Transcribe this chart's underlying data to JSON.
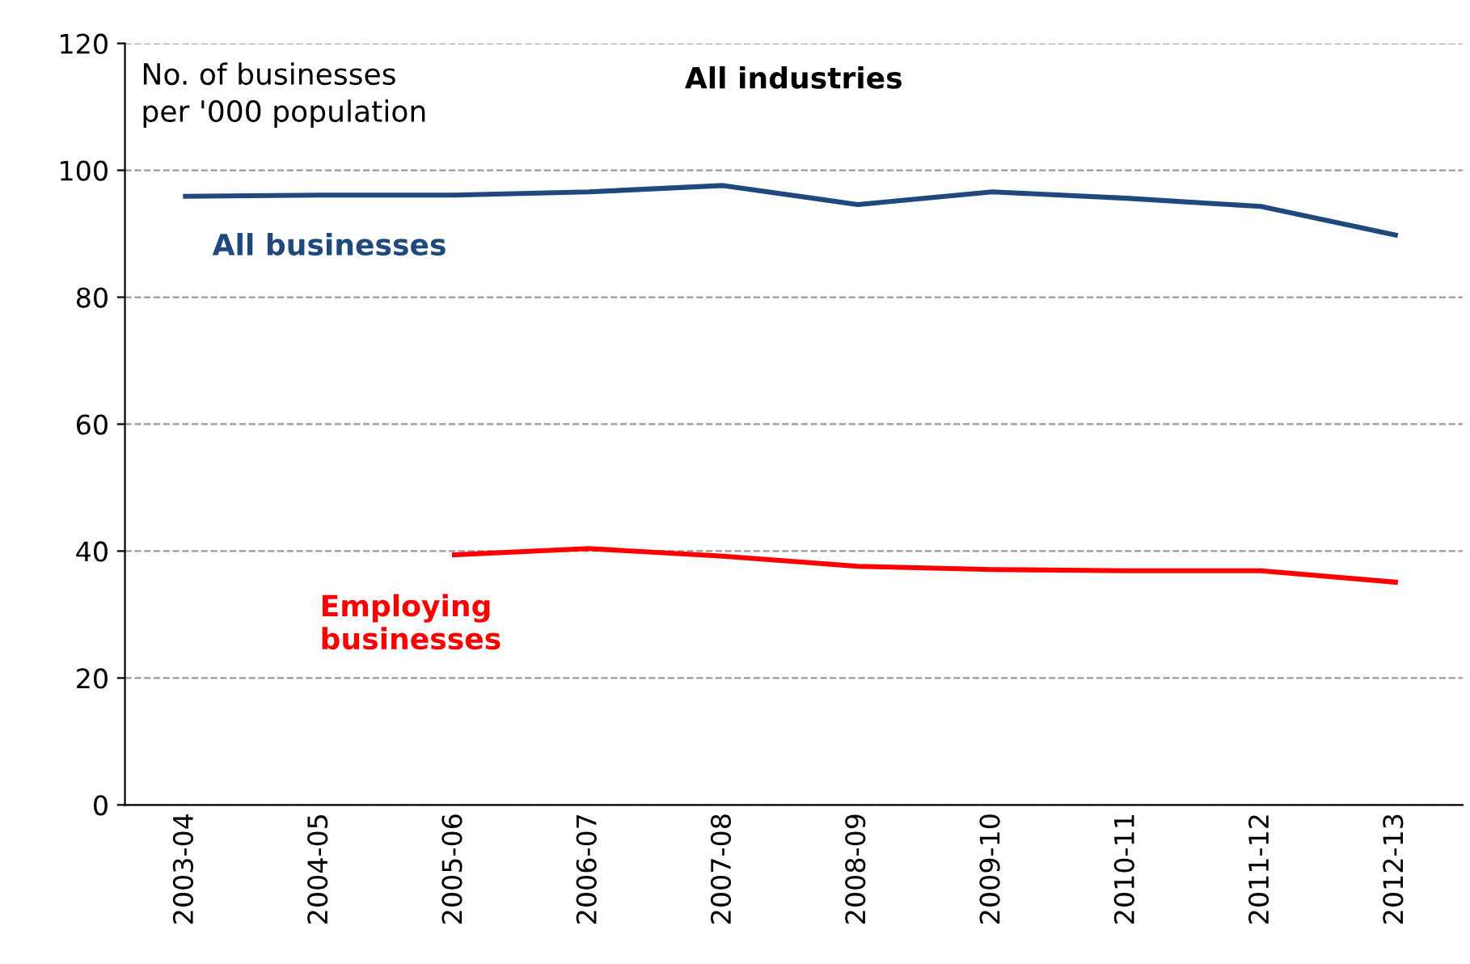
{
  "chart_data": {
    "type": "line",
    "title": "All industries",
    "ylabel": "No. of businesses\nper '000 population",
    "categories": [
      "2003-04",
      "2004-05",
      "2005-06",
      "2006-07",
      "2007-08",
      "2008-09",
      "2009-10",
      "2010-11",
      "2011-12",
      "2012-13"
    ],
    "series": [
      {
        "name": "All businesses",
        "color": "#1f497d",
        "values": [
          95.9,
          96.1,
          96.1,
          96.6,
          97.6,
          94.6,
          96.6,
          95.6,
          94.3,
          89.8
        ]
      },
      {
        "name": "Employing businesses",
        "color": "#ff0000",
        "values": [
          null,
          null,
          39.4,
          40.4,
          39.2,
          37.6,
          37.1,
          36.9,
          36.9,
          35.1
        ]
      }
    ],
    "ylim": [
      0,
      120
    ],
    "yticks": [
      0,
      20,
      40,
      60,
      80,
      100,
      120
    ],
    "grid": "y",
    "legend": false,
    "marker": "none",
    "line_style": "solid"
  }
}
